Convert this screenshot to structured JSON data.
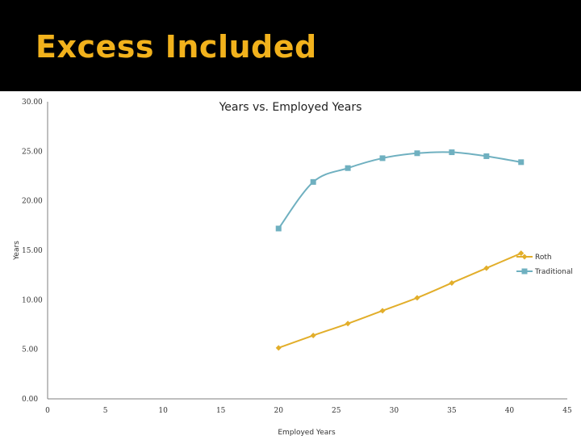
{
  "slide": {
    "title": "Excess Included"
  },
  "colors": {
    "title_band": "#000000",
    "title_text": "#f2b21c",
    "roth": "#e2ae2a",
    "traditional": "#6fb0c0"
  },
  "chart_data": {
    "type": "line",
    "title": "Years vs. Employed Years",
    "xlabel": "Employed Years",
    "ylabel": "Years",
    "xlim": [
      0,
      45
    ],
    "ylim": [
      0,
      30
    ],
    "x_ticks": [
      "0",
      "5",
      "10",
      "15",
      "20",
      "25",
      "30",
      "35",
      "40",
      "45"
    ],
    "y_ticks": [
      "0.00",
      "5.00",
      "10.00",
      "15.00",
      "20.00",
      "25.00",
      "30.00"
    ],
    "grid": false,
    "legend_position": "right",
    "smoothed": true,
    "series": [
      {
        "name": "Roth",
        "marker": "diamond",
        "color": "#e2ae2a",
        "x": [
          20,
          23,
          26,
          29,
          32,
          35,
          38,
          41
        ],
        "y": [
          5.15,
          6.4,
          7.6,
          8.9,
          10.2,
          11.7,
          13.2,
          14.7
        ]
      },
      {
        "name": "Traditional",
        "marker": "square",
        "color": "#6fb0c0",
        "x": [
          20,
          23,
          26,
          29,
          32,
          35,
          38,
          41
        ],
        "y": [
          17.2,
          21.9,
          23.3,
          24.3,
          24.8,
          24.9,
          24.5,
          23.9
        ]
      }
    ]
  }
}
